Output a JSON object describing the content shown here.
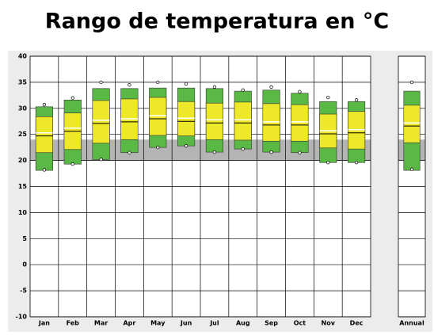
{
  "chart_data": {
    "type": "range-box",
    "title": "Rango de temperatura en °C",
    "categories": [
      "Jan",
      "Feb",
      "Mar",
      "Apr",
      "May",
      "Jun",
      "Jul",
      "Aug",
      "Sep",
      "Oct",
      "Nov",
      "Dec",
      "Annual"
    ],
    "record_high": [
      30.7,
      32.0,
      35.0,
      34.5,
      35.0,
      34.7,
      34.1,
      33.5,
      34.1,
      33.2,
      32.1,
      31.6,
      35.0
    ],
    "p90": [
      30.3,
      31.6,
      33.8,
      33.8,
      33.9,
      33.9,
      33.8,
      33.3,
      33.5,
      32.9,
      31.3,
      31.3,
      33.3
    ],
    "p75": [
      28.4,
      29.1,
      31.5,
      31.8,
      32.1,
      31.3,
      31.0,
      31.2,
      30.9,
      30.7,
      28.9,
      29.4,
      30.6
    ],
    "median": [
      25.3,
      26.2,
      27.7,
      28.0,
      28.6,
      28.1,
      27.8,
      27.8,
      27.4,
      27.4,
      25.7,
      25.9,
      27.2
    ],
    "mean": [
      24.7,
      25.6,
      27.1,
      27.4,
      28.0,
      27.5,
      27.2,
      27.2,
      26.8,
      26.8,
      25.1,
      25.3,
      26.6
    ],
    "p25": [
      21.5,
      22.1,
      23.3,
      24.0,
      24.8,
      24.7,
      24.0,
      23.9,
      23.7,
      23.7,
      22.4,
      22.2,
      23.4
    ],
    "p10": [
      18.1,
      19.3,
      20.2,
      21.5,
      22.5,
      22.8,
      21.6,
      22.2,
      21.6,
      21.5,
      19.6,
      19.6,
      18.1
    ],
    "record_low": [
      18.2,
      19.3,
      20.2,
      21.5,
      22.5,
      22.8,
      21.6,
      22.2,
      21.6,
      21.5,
      19.6,
      19.6,
      18.3
    ],
    "band": [
      20,
      24
    ],
    "colors": {
      "outer": "#5ab845",
      "inner": "#eee82a",
      "band": "#b4b4b4",
      "median": "#ffffff",
      "mean": "#000000"
    },
    "ylim": [
      -10,
      40
    ],
    "yticks": [
      -10,
      -5,
      0,
      5,
      10,
      15,
      20,
      25,
      30,
      35,
      40
    ],
    "grid": true
  }
}
